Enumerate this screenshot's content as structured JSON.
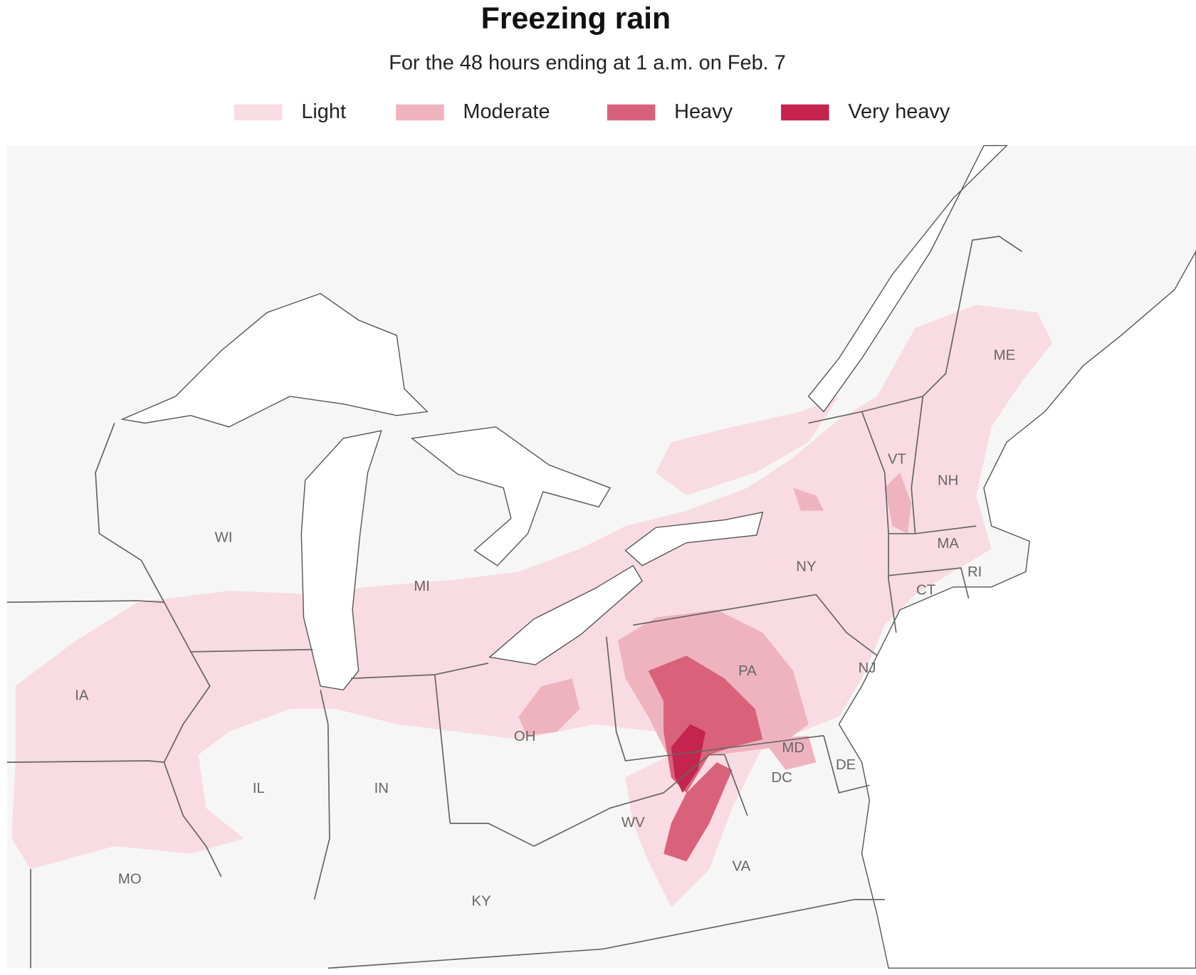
{
  "title": "Freezing rain",
  "subtitle": "For the 48 hours ending at 1 a.m. on Feb. 7",
  "legend": [
    {
      "label": "Light",
      "color": "#f9dbe3"
    },
    {
      "label": "Moderate",
      "color": "#efb3c0"
    },
    {
      "label": "Heavy",
      "color": "#d9627a"
    },
    {
      "label": "Very heavy",
      "color": "#c4244f"
    }
  ],
  "state_labels": [
    "ME",
    "VT",
    "NH",
    "MA",
    "NY",
    "CT",
    "RI",
    "WI",
    "MI",
    "PA",
    "NJ",
    "IA",
    "OH",
    "MD",
    "DE",
    "DC",
    "IL",
    "IN",
    "WV",
    "VA",
    "MO",
    "KY"
  ]
}
